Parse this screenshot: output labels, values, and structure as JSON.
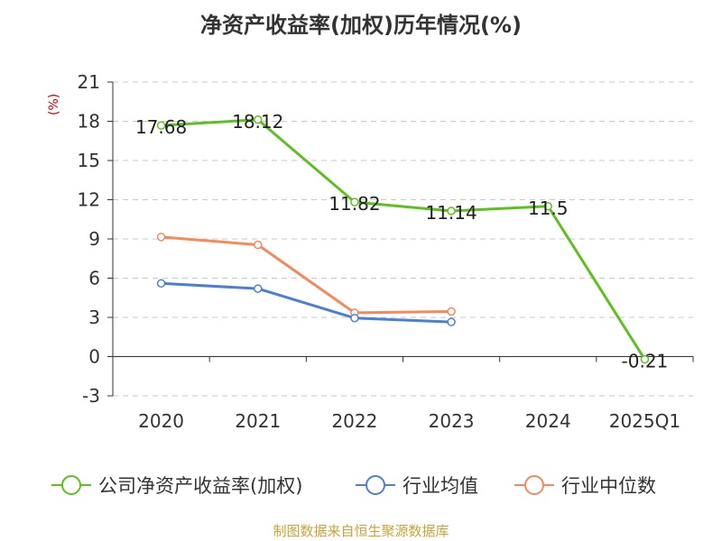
{
  "title": "净资产收益率(加权)历年情况(%)",
  "source": "制图数据来自恒生聚源数据库",
  "chart_data": {
    "type": "line",
    "title": "净资产收益率(加权)历年情况(%)",
    "ylabel": "(%)",
    "xlabel": "",
    "categories": [
      "2020",
      "2021",
      "2022",
      "2023",
      "2024",
      "2025Q1"
    ],
    "ylim": [
      -3,
      21
    ],
    "yticks": [
      -3,
      0,
      3,
      6,
      9,
      12,
      15,
      18,
      21
    ],
    "grid": true,
    "legend_position": "bottom",
    "series": [
      {
        "name": "公司净资产收益率(加权)",
        "color": "#5cc11f",
        "values": [
          17.68,
          18.12,
          11.82,
          11.14,
          11.5,
          -0.21
        ],
        "data_labels": true
      },
      {
        "name": "行业均值",
        "color": "#4a7fd8",
        "values": [
          5.6,
          5.2,
          2.95,
          2.65,
          null,
          null
        ],
        "data_labels": false
      },
      {
        "name": "行业中位数",
        "color": "#f5895a",
        "values": [
          9.15,
          8.55,
          3.35,
          3.45,
          null,
          null
        ],
        "data_labels": false
      }
    ]
  }
}
